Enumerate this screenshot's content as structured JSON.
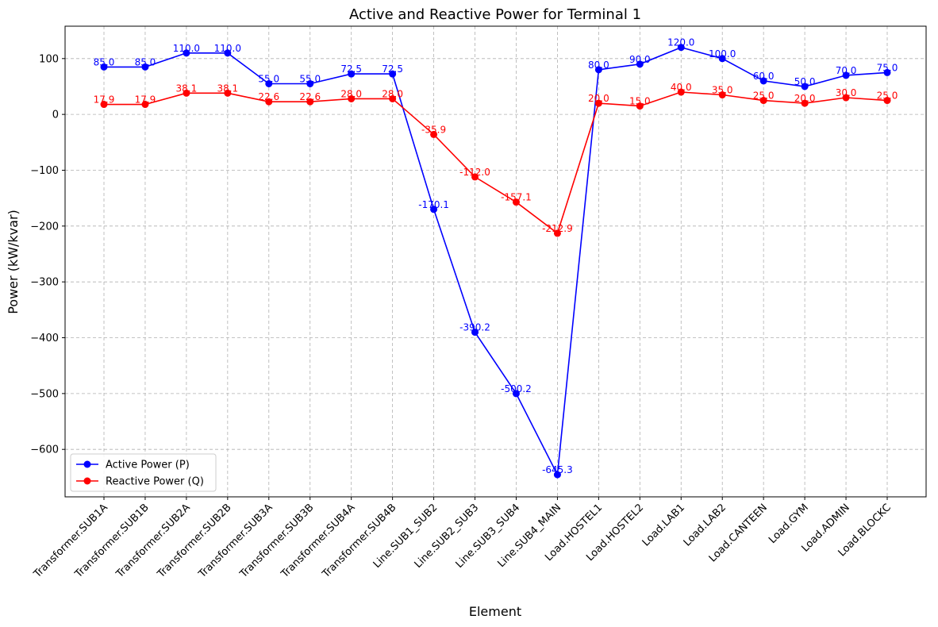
{
  "chart_data": {
    "type": "line",
    "title": "Active and Reactive Power for Terminal 1",
    "xlabel": "Element",
    "ylabel": "Power (kW/kvar)",
    "ylim": [
      -685,
      158
    ],
    "yticks": [
      -600,
      -500,
      -400,
      -300,
      -200,
      -100,
      0,
      100
    ],
    "grid": true,
    "legend_position": "lower-left",
    "categories": [
      "Transformer.SUB1A",
      "Transformer.SUB1B",
      "Transformer.SUB2A",
      "Transformer.SUB2B",
      "Transformer.SUB3A",
      "Transformer.SUB3B",
      "Transformer.SUB4A",
      "Transformer.SUB4B",
      "Line.SUB1_SUB2",
      "Line.SUB2_SUB3",
      "Line.SUB3_SUB4",
      "Line.SUB4_MAIN",
      "Load.HOSTEL1",
      "Load.HOSTEL2",
      "Load.LAB1",
      "Load.LAB2",
      "Load.CANTEEN",
      "Load.GYM",
      "Load.ADMIN",
      "Load.BLOCKC"
    ],
    "series": [
      {
        "name": "Active Power (P)",
        "color": "#0000ff",
        "values": [
          85.0,
          85.0,
          110.0,
          110.0,
          55.0,
          55.0,
          72.5,
          72.5,
          -170.1,
          -390.2,
          -500.2,
          -645.3,
          80.0,
          90.0,
          120.0,
          100.0,
          60.0,
          50.0,
          70.0,
          75.0
        ]
      },
      {
        "name": "Reactive Power (Q)",
        "color": "#ff0000",
        "values": [
          17.9,
          17.9,
          38.1,
          38.1,
          22.6,
          22.6,
          28.0,
          28.0,
          -35.9,
          -112.0,
          -157.1,
          -212.9,
          20.0,
          15.0,
          40.0,
          35.0,
          25.0,
          20.0,
          30.0,
          25.0
        ]
      }
    ]
  }
}
